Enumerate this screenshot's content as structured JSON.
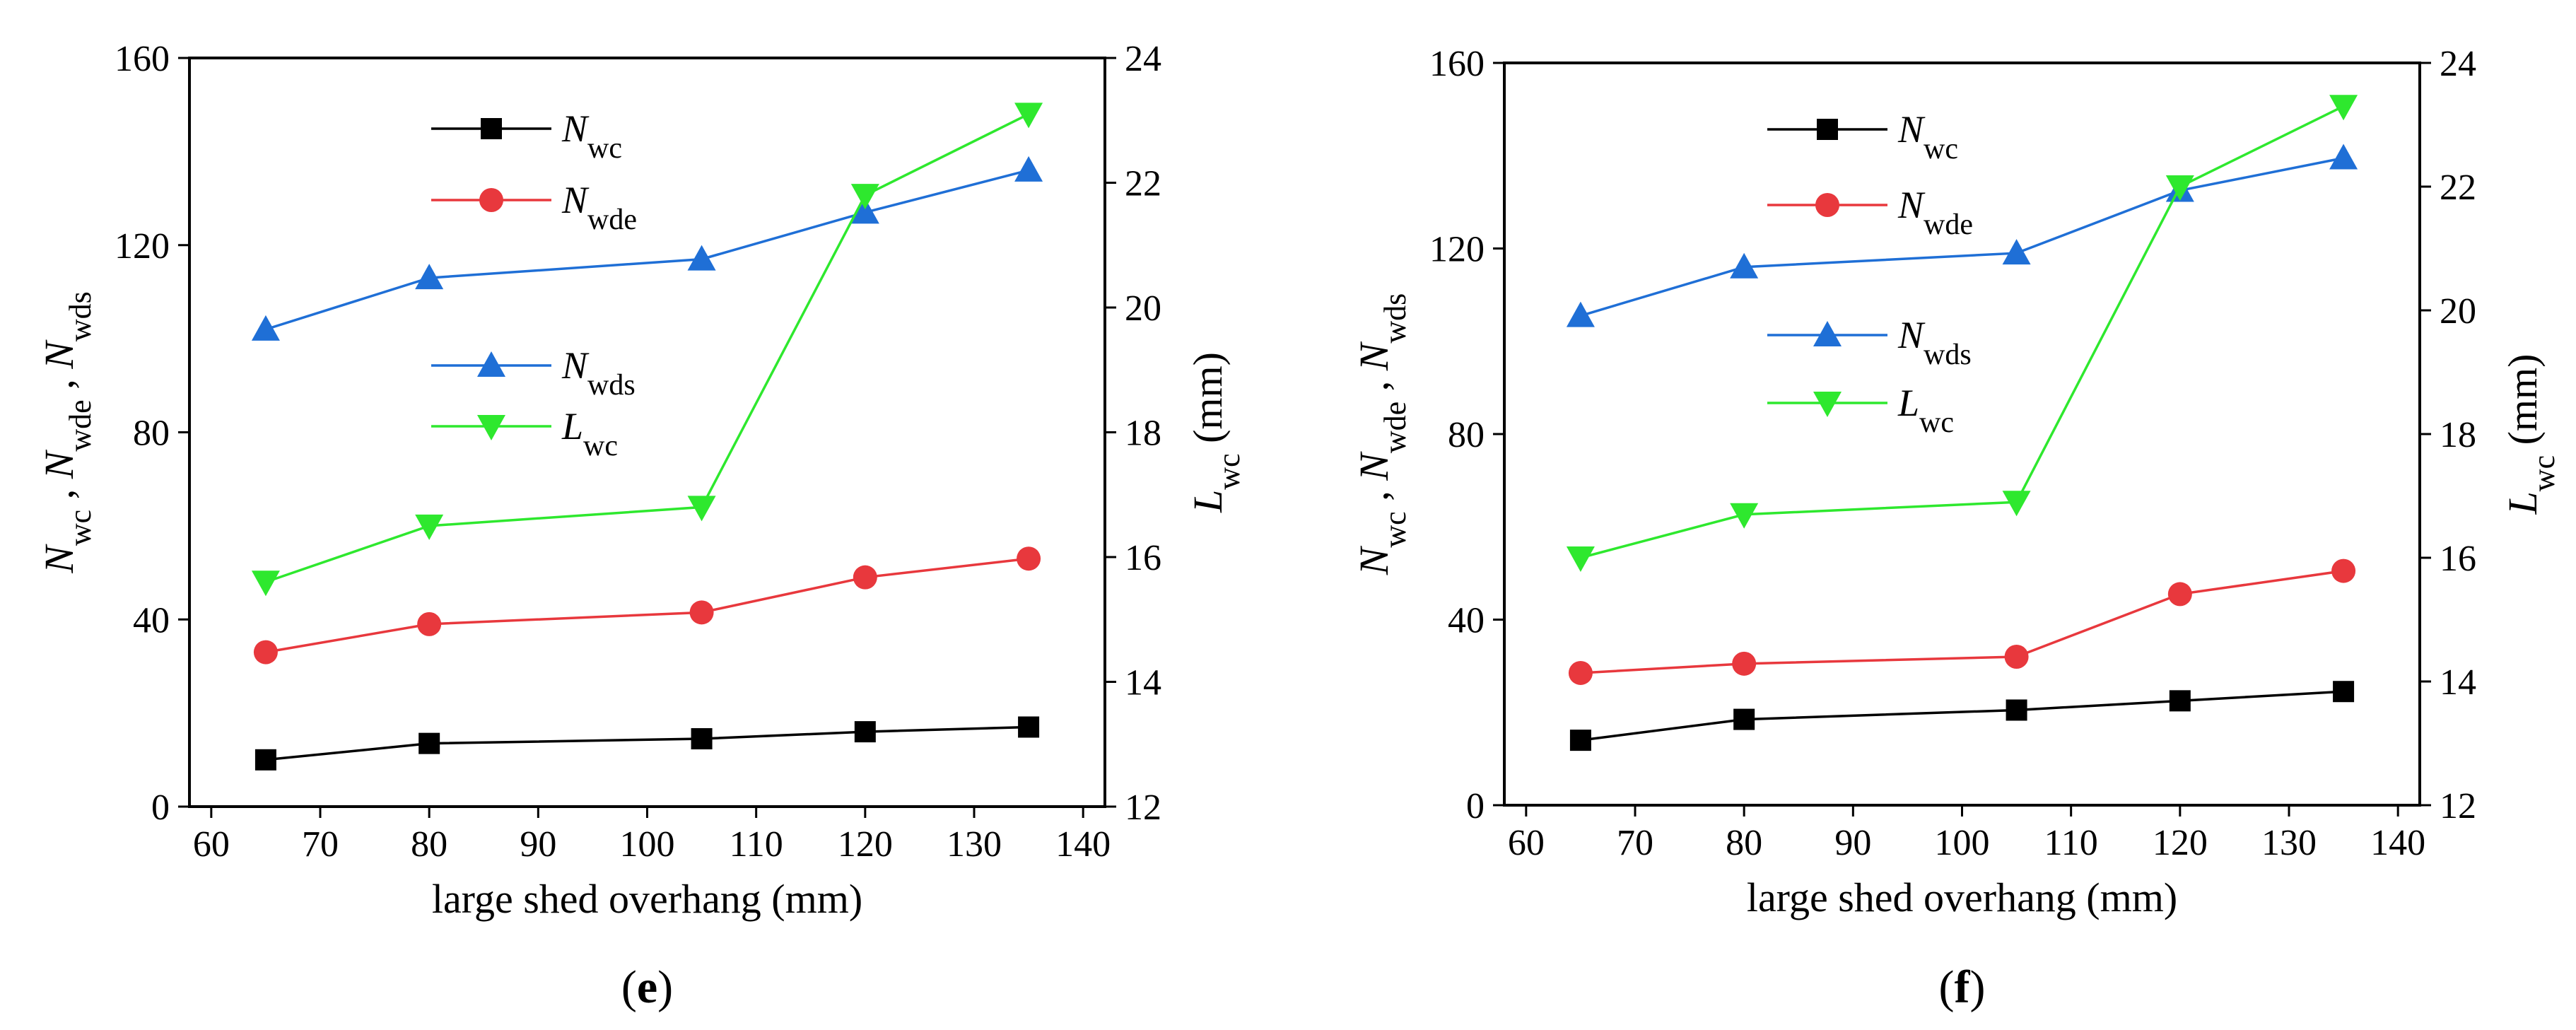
{
  "colors": {
    "Nwc": "#000000",
    "Nwde": "#e8383d",
    "Nwds": "#1f6fd6",
    "Lwc": "#2ee82e"
  },
  "chart_data": [
    {
      "type": "line",
      "panel_label": "e",
      "xlabel": "large shed overhang (mm)",
      "ylabel_left": {
        "main": "N",
        "parts": [
          {
            "base": "N",
            "sub": "wc"
          },
          {
            "base": "N",
            "sub": "wde"
          },
          {
            "base": "N",
            "sub": "wds"
          }
        ]
      },
      "ylabel_right": {
        "base": "L",
        "sub": "wc",
        "unit": " (mm)"
      },
      "xlim": [
        58,
        142
      ],
      "xticks": [
        60,
        70,
        80,
        90,
        100,
        110,
        120,
        130,
        140
      ],
      "ylim_left": [
        0,
        160
      ],
      "yticks_left": [
        0,
        40,
        80,
        120,
        160
      ],
      "ylim_right": [
        12,
        24
      ],
      "yticks_right": [
        12,
        14,
        16,
        18,
        20,
        22,
        24
      ],
      "legend": [
        {
          "key": "Nwc",
          "base": "N",
          "sub": "wc"
        },
        {
          "key": "Nwde",
          "base": "N",
          "sub": "wde"
        },
        {
          "key": "Nwds",
          "base": "N",
          "sub": "wds"
        },
        {
          "key": "Lwc",
          "base": "L",
          "sub": "wc"
        }
      ],
      "x": [
        65,
        80,
        105,
        120,
        135
      ],
      "series": [
        {
          "name": "Nwc",
          "axis": "left",
          "marker": "square",
          "values": [
            10,
            13.5,
            14.5,
            16,
            17
          ]
        },
        {
          "name": "Nwde",
          "axis": "left",
          "marker": "circle",
          "values": [
            33,
            39,
            41.5,
            49,
            53
          ]
        },
        {
          "name": "Nwds",
          "axis": "left",
          "marker": "triangle-up",
          "values": [
            102,
            113,
            117,
            127,
            136
          ]
        },
        {
          "name": "Lwc",
          "axis": "right",
          "marker": "triangle-down",
          "values": [
            15.6,
            16.5,
            16.8,
            21.8,
            23.1
          ]
        }
      ]
    },
    {
      "type": "line",
      "panel_label": "f",
      "xlabel": "large shed overhang (mm)",
      "ylabel_left": {
        "main": "N",
        "parts": [
          {
            "base": "N",
            "sub": "wc"
          },
          {
            "base": "N",
            "sub": "wde"
          },
          {
            "base": "N",
            "sub": "wds"
          }
        ]
      },
      "ylabel_right": {
        "base": "L",
        "sub": "wc",
        "unit": " (mm)"
      },
      "xlim": [
        58,
        142
      ],
      "xticks": [
        60,
        70,
        80,
        90,
        100,
        110,
        120,
        130,
        140
      ],
      "ylim_left": [
        0,
        160
      ],
      "yticks_left": [
        0,
        40,
        80,
        120,
        160
      ],
      "ylim_right": [
        12,
        24
      ],
      "yticks_right": [
        12,
        14,
        16,
        18,
        20,
        22,
        24
      ],
      "legend": [
        {
          "key": "Nwc",
          "base": "N",
          "sub": "wc"
        },
        {
          "key": "Nwde",
          "base": "N",
          "sub": "wde"
        },
        {
          "key": "Nwds",
          "base": "N",
          "sub": "wds"
        },
        {
          "key": "Lwc",
          "base": "L",
          "sub": "wc"
        }
      ],
      "x": [
        65,
        80,
        105,
        120,
        135
      ],
      "series": [
        {
          "name": "Nwc",
          "axis": "left",
          "marker": "square",
          "values": [
            14,
            18.5,
            20.5,
            22.5,
            24.5
          ]
        },
        {
          "name": "Nwde",
          "axis": "left",
          "marker": "circle",
          "values": [
            28.5,
            30.5,
            32,
            45.5,
            50.5
          ]
        },
        {
          "name": "Nwds",
          "axis": "left",
          "marker": "triangle-up",
          "values": [
            105.5,
            116,
            119,
            132.5,
            139.5
          ]
        },
        {
          "name": "Lwc",
          "axis": "right",
          "marker": "triangle-down",
          "values": [
            16.0,
            16.7,
            16.9,
            22.0,
            23.3
          ]
        }
      ]
    }
  ]
}
